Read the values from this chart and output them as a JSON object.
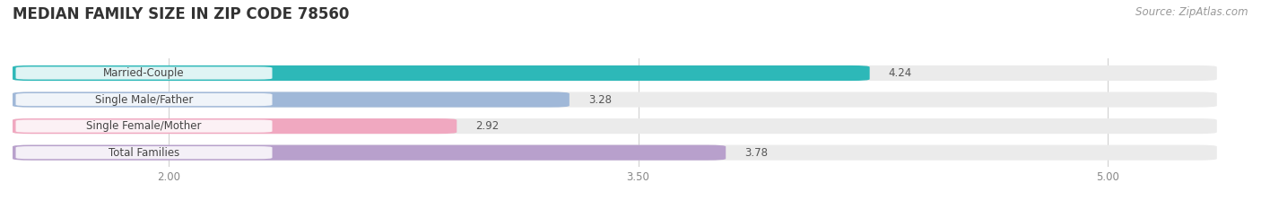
{
  "title": "MEDIAN FAMILY SIZE IN ZIP CODE 78560",
  "source": "Source: ZipAtlas.com",
  "categories": [
    "Married-Couple",
    "Single Male/Father",
    "Single Female/Mother",
    "Total Families"
  ],
  "values": [
    4.24,
    3.28,
    2.92,
    3.78
  ],
  "bar_colors": [
    "#2db8b8",
    "#a0b8d8",
    "#f0a8c0",
    "#b8a0cc"
  ],
  "xlim_left": 1.5,
  "xlim_right": 5.35,
  "xticks": [
    2.0,
    3.5,
    5.0
  ],
  "xtick_labels": [
    "2.00",
    "3.50",
    "5.00"
  ],
  "bar_height": 0.58,
  "bar_gap": 0.42,
  "background_color": "#ffffff",
  "bar_bg_color": "#ebebeb",
  "title_fontsize": 12,
  "label_fontsize": 8.5,
  "value_fontsize": 8.5,
  "source_fontsize": 8.5
}
